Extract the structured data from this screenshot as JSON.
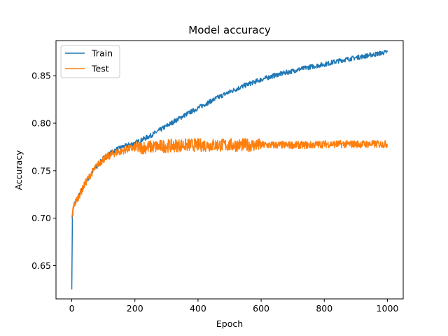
{
  "chart_data": {
    "type": "line",
    "title": "Model accuracy",
    "xlabel": "Epoch",
    "ylabel": "Accuracy",
    "xlim": [
      -50,
      1050
    ],
    "ylim": [
      0.615,
      0.887
    ],
    "xticks": [
      0,
      200,
      400,
      600,
      800,
      1000
    ],
    "xtick_labels": [
      "0",
      "200",
      "400",
      "600",
      "800",
      "1000"
    ],
    "yticks": [
      0.65,
      0.7,
      0.75,
      0.8,
      0.85
    ],
    "ytick_labels": [
      "0.65",
      "0.70",
      "0.75",
      "0.80",
      "0.85"
    ],
    "grid": false,
    "legend_position": "top-left",
    "series": [
      {
        "name": "Train",
        "color": "#1f77b4",
        "x": [
          0,
          2,
          5,
          10,
          15,
          20,
          30,
          40,
          50,
          60,
          70,
          80,
          90,
          100,
          120,
          140,
          160,
          180,
          200,
          250,
          300,
          350,
          400,
          450,
          500,
          550,
          600,
          650,
          700,
          750,
          800,
          850,
          900,
          950,
          1000
        ],
        "values": [
          0.625,
          0.702,
          0.712,
          0.716,
          0.719,
          0.722,
          0.728,
          0.735,
          0.741,
          0.746,
          0.751,
          0.755,
          0.759,
          0.763,
          0.768,
          0.772,
          0.775,
          0.777,
          0.779,
          0.787,
          0.797,
          0.807,
          0.816,
          0.825,
          0.833,
          0.84,
          0.846,
          0.851,
          0.855,
          0.859,
          0.862,
          0.866,
          0.869,
          0.872,
          0.875
        ]
      },
      {
        "name": "Test",
        "color": "#ff7f0e",
        "x": [
          0,
          2,
          5,
          10,
          15,
          20,
          30,
          40,
          50,
          60,
          70,
          80,
          90,
          100,
          120,
          140,
          160,
          180,
          200,
          250,
          300,
          350,
          400,
          450,
          500,
          550,
          600,
          650,
          700,
          750,
          800,
          850,
          900,
          950,
          1000
        ],
        "values": [
          0.7,
          0.705,
          0.712,
          0.716,
          0.719,
          0.722,
          0.728,
          0.735,
          0.741,
          0.746,
          0.751,
          0.755,
          0.759,
          0.762,
          0.766,
          0.769,
          0.771,
          0.773,
          0.774,
          0.775,
          0.776,
          0.777,
          0.777,
          0.777,
          0.777,
          0.777,
          0.777,
          0.777,
          0.777,
          0.777,
          0.778,
          0.778,
          0.778,
          0.778,
          0.778
        ]
      }
    ]
  }
}
